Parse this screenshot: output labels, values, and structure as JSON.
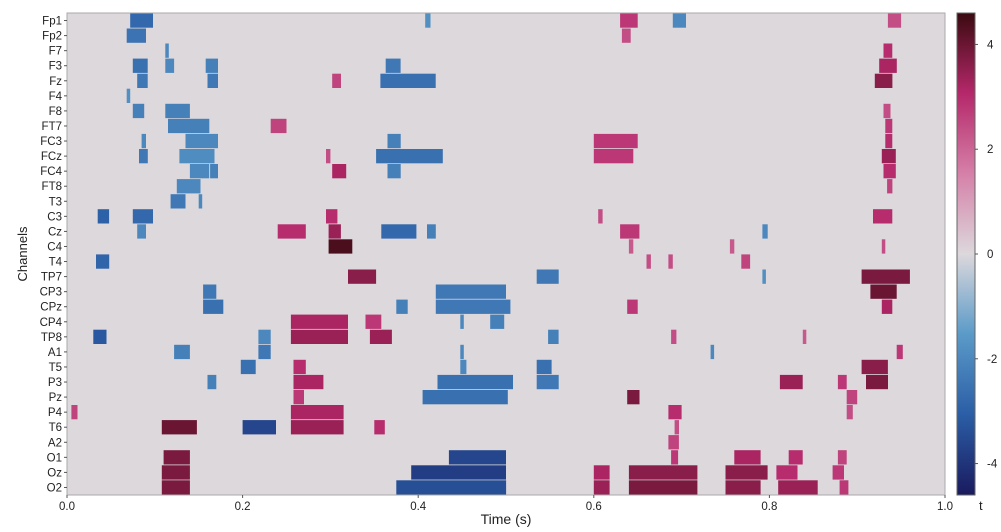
{
  "chart_data": {
    "type": "heatmap",
    "title": "",
    "xlabel": "Time (s)",
    "ylabel": "Channels",
    "colorbar_label": "t",
    "xlim": [
      0.0,
      1.0
    ],
    "x_ticks": [
      0.0,
      0.2,
      0.4,
      0.6,
      0.8,
      1.0
    ],
    "x_tick_labels": [
      "0.0",
      "0.2",
      "0.4",
      "0.6",
      "0.8",
      "1.0"
    ],
    "clim": [
      -4.6,
      4.6
    ],
    "colorbar_ticks": [
      -4,
      -2,
      0,
      2,
      4
    ],
    "colorbar_tick_labels": [
      "-4",
      "-2",
      "0",
      "2",
      "4"
    ],
    "colormap": [
      "#1a1a5e",
      "#2b5ea6",
      "#5a9ac8",
      "#dcd8dc",
      "#d580a8",
      "#b5286a",
      "#3a0a10"
    ],
    "background_color": "#dcd8dc",
    "grid": false,
    "channels": [
      "Fp1",
      "Fp2",
      "F7",
      "F3",
      "Fz",
      "F4",
      "F8",
      "FT7",
      "FC3",
      "FCz",
      "FC4",
      "FT8",
      "T3",
      "C3",
      "Cz",
      "C4",
      "T4",
      "TP7",
      "CP3",
      "CPz",
      "CP4",
      "TP8",
      "A1",
      "T5",
      "P3",
      "Pz",
      "P4",
      "T6",
      "A2",
      "O1",
      "Oz",
      "O2"
    ],
    "clusters": [
      {
        "channel": "Fp1",
        "t0": 0.072,
        "t1": 0.098,
        "value": -2.8
      },
      {
        "channel": "Fp2",
        "t0": 0.068,
        "t1": 0.09,
        "value": -2.5
      },
      {
        "channel": "Fp1",
        "t0": 0.408,
        "t1": 0.414,
        "value": -1.8
      },
      {
        "channel": "Fp1",
        "t0": 0.63,
        "t1": 0.65,
        "value": 2.8
      },
      {
        "channel": "Fp2",
        "t0": 0.632,
        "t1": 0.642,
        "value": 2.4
      },
      {
        "channel": "Fp1",
        "t0": 0.69,
        "t1": 0.705,
        "value": -2.0
      },
      {
        "channel": "Fp1",
        "t0": 0.935,
        "t1": 0.95,
        "value": 2.4
      },
      {
        "channel": "F7",
        "t0": 0.112,
        "t1": 0.116,
        "value": -2.0
      },
      {
        "channel": "F3",
        "t0": 0.075,
        "t1": 0.092,
        "value": -2.6
      },
      {
        "channel": "Fz",
        "t0": 0.08,
        "t1": 0.092,
        "value": -2.4
      },
      {
        "channel": "F3",
        "t0": 0.112,
        "t1": 0.122,
        "value": -2.0
      },
      {
        "channel": "F3",
        "t0": 0.158,
        "t1": 0.172,
        "value": -2.2
      },
      {
        "channel": "Fz",
        "t0": 0.16,
        "t1": 0.172,
        "value": -2.4
      },
      {
        "channel": "F4",
        "t0": 0.068,
        "t1": 0.072,
        "value": -1.8
      },
      {
        "channel": "F8",
        "t0": 0.075,
        "t1": 0.088,
        "value": -2.2
      },
      {
        "channel": "F8",
        "t0": 0.112,
        "t1": 0.14,
        "value": -2.2
      },
      {
        "channel": "FT7",
        "t0": 0.115,
        "t1": 0.162,
        "value": -2.2
      },
      {
        "channel": "FC3",
        "t0": 0.135,
        "t1": 0.172,
        "value": -2.0
      },
      {
        "channel": "FCz",
        "t0": 0.128,
        "t1": 0.168,
        "value": -1.9
      },
      {
        "channel": "FC4",
        "t0": 0.14,
        "t1": 0.162,
        "value": -2.0
      },
      {
        "channel": "FCz",
        "t0": 0.082,
        "t1": 0.092,
        "value": -2.4
      },
      {
        "channel": "FC3",
        "t0": 0.085,
        "t1": 0.09,
        "value": -2.0
      },
      {
        "channel": "FC4",
        "t0": 0.163,
        "t1": 0.172,
        "value": -2.2
      },
      {
        "channel": "FT8",
        "t0": 0.125,
        "t1": 0.152,
        "value": -2.0
      },
      {
        "channel": "T3",
        "t0": 0.118,
        "t1": 0.135,
        "value": -2.4
      },
      {
        "channel": "T3",
        "t0": 0.15,
        "t1": 0.154,
        "value": -2.0
      },
      {
        "channel": "C3",
        "t0": 0.035,
        "t1": 0.048,
        "value": -3.0
      },
      {
        "channel": "C3",
        "t0": 0.075,
        "t1": 0.098,
        "value": -2.8
      },
      {
        "channel": "Cz",
        "t0": 0.08,
        "t1": 0.09,
        "value": -2.0
      },
      {
        "channel": "T4",
        "t0": 0.033,
        "t1": 0.048,
        "value": -2.9
      },
      {
        "channel": "CP3",
        "t0": 0.155,
        "t1": 0.17,
        "value": -2.4
      },
      {
        "channel": "CPz",
        "t0": 0.155,
        "t1": 0.178,
        "value": -2.6
      },
      {
        "channel": "TP8",
        "t0": 0.03,
        "t1": 0.045,
        "value": -3.2
      },
      {
        "channel": "A1",
        "t0": 0.122,
        "t1": 0.14,
        "value": -2.2
      },
      {
        "channel": "A1",
        "t0": 0.218,
        "t1": 0.232,
        "value": -2.4
      },
      {
        "channel": "TP8",
        "t0": 0.218,
        "t1": 0.232,
        "value": -2.0
      },
      {
        "channel": "T5",
        "t0": 0.198,
        "t1": 0.215,
        "value": -2.6
      },
      {
        "channel": "P3",
        "t0": 0.16,
        "t1": 0.17,
        "value": -2.2
      },
      {
        "channel": "T6",
        "t0": 0.2,
        "t1": 0.238,
        "value": -3.6
      },
      {
        "channel": "Fz",
        "t0": 0.302,
        "t1": 0.312,
        "value": 2.6
      },
      {
        "channel": "FT7",
        "t0": 0.232,
        "t1": 0.25,
        "value": 2.6
      },
      {
        "channel": "FCz",
        "t0": 0.295,
        "t1": 0.3,
        "value": 2.4
      },
      {
        "channel": "FC4",
        "t0": 0.302,
        "t1": 0.318,
        "value": 3.2
      },
      {
        "channel": "C3",
        "t0": 0.295,
        "t1": 0.308,
        "value": 3.0
      },
      {
        "channel": "Cz",
        "t0": 0.24,
        "t1": 0.272,
        "value": 3.0
      },
      {
        "channel": "Cz",
        "t0": 0.298,
        "t1": 0.312,
        "value": 3.4
      },
      {
        "channel": "C4",
        "t0": 0.298,
        "t1": 0.325,
        "value": 4.4
      },
      {
        "channel": "TP7",
        "t0": 0.32,
        "t1": 0.352,
        "value": 3.6
      },
      {
        "channel": "CP4",
        "t0": 0.255,
        "t1": 0.32,
        "value": 3.2
      },
      {
        "channel": "TP8",
        "t0": 0.255,
        "t1": 0.32,
        "value": 3.4
      },
      {
        "channel": "TP8",
        "t0": 0.345,
        "t1": 0.37,
        "value": 3.4
      },
      {
        "channel": "CP4",
        "t0": 0.34,
        "t1": 0.358,
        "value": 2.8
      },
      {
        "channel": "T5",
        "t0": 0.258,
        "t1": 0.272,
        "value": 3.0
      },
      {
        "channel": "P3",
        "t0": 0.258,
        "t1": 0.292,
        "value": 3.2
      },
      {
        "channel": "Pz",
        "t0": 0.258,
        "t1": 0.27,
        "value": 2.8
      },
      {
        "channel": "P4",
        "t0": 0.255,
        "t1": 0.315,
        "value": 3.2
      },
      {
        "channel": "T6",
        "t0": 0.255,
        "t1": 0.315,
        "value": 3.4
      },
      {
        "channel": "T6",
        "t0": 0.35,
        "t1": 0.362,
        "value": 3.0
      },
      {
        "channel": "P4",
        "t0": 0.005,
        "t1": 0.012,
        "value": 2.6
      },
      {
        "channel": "T6",
        "t0": 0.108,
        "t1": 0.148,
        "value": 4.0
      },
      {
        "channel": "O1",
        "t0": 0.11,
        "t1": 0.14,
        "value": 3.8
      },
      {
        "channel": "Oz",
        "t0": 0.108,
        "t1": 0.14,
        "value": 3.8
      },
      {
        "channel": "O2",
        "t0": 0.108,
        "t1": 0.14,
        "value": 3.8
      },
      {
        "channel": "F3",
        "t0": 0.363,
        "t1": 0.38,
        "value": -2.4
      },
      {
        "channel": "Fz",
        "t0": 0.357,
        "t1": 0.42,
        "value": -2.6
      },
      {
        "channel": "FC3",
        "t0": 0.365,
        "t1": 0.38,
        "value": -2.2
      },
      {
        "channel": "FCz",
        "t0": 0.352,
        "t1": 0.428,
        "value": -2.6
      },
      {
        "channel": "FC4",
        "t0": 0.365,
        "t1": 0.38,
        "value": -2.2
      },
      {
        "channel": "Cz",
        "t0": 0.358,
        "t1": 0.398,
        "value": -2.8
      },
      {
        "channel": "Cz",
        "t0": 0.41,
        "t1": 0.42,
        "value": -2.2
      },
      {
        "channel": "CP3",
        "t0": 0.42,
        "t1": 0.5,
        "value": -2.4
      },
      {
        "channel": "CPz",
        "t0": 0.42,
        "t1": 0.505,
        "value": -2.4
      },
      {
        "channel": "CPz",
        "t0": 0.375,
        "t1": 0.388,
        "value": -2.2
      },
      {
        "channel": "CP4",
        "t0": 0.448,
        "t1": 0.452,
        "value": -2.0
      },
      {
        "channel": "CP4",
        "t0": 0.482,
        "t1": 0.498,
        "value": -2.2
      },
      {
        "channel": "TP7",
        "t0": 0.535,
        "t1": 0.56,
        "value": -2.4
      },
      {
        "channel": "TP8",
        "t0": 0.548,
        "t1": 0.56,
        "value": -2.2
      },
      {
        "channel": "A1",
        "t0": 0.448,
        "t1": 0.452,
        "value": -2.0
      },
      {
        "channel": "T5",
        "t0": 0.448,
        "t1": 0.455,
        "value": -2.0
      },
      {
        "channel": "T5",
        "t0": 0.535,
        "t1": 0.552,
        "value": -2.6
      },
      {
        "channel": "P3",
        "t0": 0.422,
        "t1": 0.508,
        "value": -2.6
      },
      {
        "channel": "P3",
        "t0": 0.535,
        "t1": 0.56,
        "value": -2.4
      },
      {
        "channel": "Pz",
        "t0": 0.405,
        "t1": 0.502,
        "value": -2.6
      },
      {
        "channel": "O1",
        "t0": 0.435,
        "t1": 0.5,
        "value": -3.6
      },
      {
        "channel": "Oz",
        "t0": 0.392,
        "t1": 0.5,
        "value": -3.8
      },
      {
        "channel": "O2",
        "t0": 0.375,
        "t1": 0.5,
        "value": -3.4
      },
      {
        "channel": "FC3",
        "t0": 0.6,
        "t1": 0.65,
        "value": 2.8
      },
      {
        "channel": "FCz",
        "t0": 0.6,
        "t1": 0.645,
        "value": 2.8
      },
      {
        "channel": "C3",
        "t0": 0.605,
        "t1": 0.61,
        "value": 2.4
      },
      {
        "channel": "Cz",
        "t0": 0.63,
        "t1": 0.652,
        "value": 2.8
      },
      {
        "channel": "T4",
        "t0": 0.66,
        "t1": 0.665,
        "value": 2.4
      },
      {
        "channel": "T4",
        "t0": 0.685,
        "t1": 0.69,
        "value": 2.4
      },
      {
        "channel": "C4",
        "t0": 0.64,
        "t1": 0.645,
        "value": 2.2
      },
      {
        "channel": "T4",
        "t0": 0.768,
        "t1": 0.778,
        "value": 2.6
      },
      {
        "channel": "C4",
        "t0": 0.755,
        "t1": 0.76,
        "value": 2.2
      },
      {
        "channel": "Cz",
        "t0": 0.792,
        "t1": 0.798,
        "value": -2.0
      },
      {
        "channel": "TP7",
        "t0": 0.792,
        "t1": 0.796,
        "value": -1.8
      },
      {
        "channel": "CPz",
        "t0": 0.638,
        "t1": 0.65,
        "value": 2.8
      },
      {
        "channel": "TP8",
        "t0": 0.688,
        "t1": 0.694,
        "value": 2.4
      },
      {
        "channel": "TP8",
        "t0": 0.838,
        "t1": 0.842,
        "value": 2.2
      },
      {
        "channel": "A1",
        "t0": 0.733,
        "t1": 0.737,
        "value": -2.0
      },
      {
        "channel": "Pz",
        "t0": 0.638,
        "t1": 0.652,
        "value": 3.8
      },
      {
        "channel": "P4",
        "t0": 0.685,
        "t1": 0.7,
        "value": 3.0
      },
      {
        "channel": "P3",
        "t0": 0.812,
        "t1": 0.838,
        "value": 3.4
      },
      {
        "channel": "P3",
        "t0": 0.878,
        "t1": 0.888,
        "value": 2.8
      },
      {
        "channel": "Pz",
        "t0": 0.888,
        "t1": 0.9,
        "value": 2.6
      },
      {
        "channel": "P4",
        "t0": 0.888,
        "t1": 0.895,
        "value": 2.4
      },
      {
        "channel": "T6",
        "t0": 0.692,
        "t1": 0.697,
        "value": 2.4
      },
      {
        "channel": "A2",
        "t0": 0.685,
        "t1": 0.697,
        "value": 2.6
      },
      {
        "channel": "O1",
        "t0": 0.688,
        "t1": 0.696,
        "value": 2.8
      },
      {
        "channel": "Oz",
        "t0": 0.6,
        "t1": 0.618,
        "value": 3.2
      },
      {
        "channel": "O2",
        "t0": 0.6,
        "t1": 0.618,
        "value": 3.4
      },
      {
        "channel": "Oz",
        "t0": 0.64,
        "t1": 0.718,
        "value": 3.6
      },
      {
        "channel": "O2",
        "t0": 0.64,
        "t1": 0.718,
        "value": 3.8
      },
      {
        "channel": "O1",
        "t0": 0.76,
        "t1": 0.79,
        "value": 3.2
      },
      {
        "channel": "Oz",
        "t0": 0.75,
        "t1": 0.798,
        "value": 3.6
      },
      {
        "channel": "O2",
        "t0": 0.75,
        "t1": 0.79,
        "value": 3.6
      },
      {
        "channel": "O1",
        "t0": 0.822,
        "t1": 0.838,
        "value": 3.0
      },
      {
        "channel": "Oz",
        "t0": 0.808,
        "t1": 0.832,
        "value": 3.0
      },
      {
        "channel": "O2",
        "t0": 0.81,
        "t1": 0.855,
        "value": 3.4
      },
      {
        "channel": "O1",
        "t0": 0.878,
        "t1": 0.888,
        "value": 2.6
      },
      {
        "channel": "Oz",
        "t0": 0.872,
        "t1": 0.885,
        "value": 2.8
      },
      {
        "channel": "O2",
        "t0": 0.88,
        "t1": 0.89,
        "value": 2.8
      },
      {
        "channel": "Fz",
        "t0": 0.92,
        "t1": 0.94,
        "value": 3.6
      },
      {
        "channel": "F3",
        "t0": 0.925,
        "t1": 0.945,
        "value": 3.2
      },
      {
        "channel": "F7",
        "t0": 0.93,
        "t1": 0.94,
        "value": 3.0
      },
      {
        "channel": "F8",
        "t0": 0.93,
        "t1": 0.938,
        "value": 2.4
      },
      {
        "channel": "FT7",
        "t0": 0.932,
        "t1": 0.94,
        "value": 2.8
      },
      {
        "channel": "FC3",
        "t0": 0.932,
        "t1": 0.94,
        "value": 3.0
      },
      {
        "channel": "FCz",
        "t0": 0.928,
        "t1": 0.944,
        "value": 3.4
      },
      {
        "channel": "FC4",
        "t0": 0.93,
        "t1": 0.944,
        "value": 3.0
      },
      {
        "channel": "FT8",
        "t0": 0.934,
        "t1": 0.94,
        "value": 2.6
      },
      {
        "channel": "C3",
        "t0": 0.918,
        "t1": 0.94,
        "value": 3.0
      },
      {
        "channel": "C4",
        "t0": 0.928,
        "t1": 0.932,
        "value": 2.4
      },
      {
        "channel": "TP7",
        "t0": 0.905,
        "t1": 0.96,
        "value": 3.8
      },
      {
        "channel": "CP3",
        "t0": 0.915,
        "t1": 0.945,
        "value": 4.0
      },
      {
        "channel": "CPz",
        "t0": 0.928,
        "t1": 0.94,
        "value": 3.2
      },
      {
        "channel": "A1",
        "t0": 0.945,
        "t1": 0.952,
        "value": 2.8
      },
      {
        "channel": "T5",
        "t0": 0.905,
        "t1": 0.935,
        "value": 3.6
      },
      {
        "channel": "P3",
        "t0": 0.91,
        "t1": 0.935,
        "value": 3.8
      }
    ]
  }
}
